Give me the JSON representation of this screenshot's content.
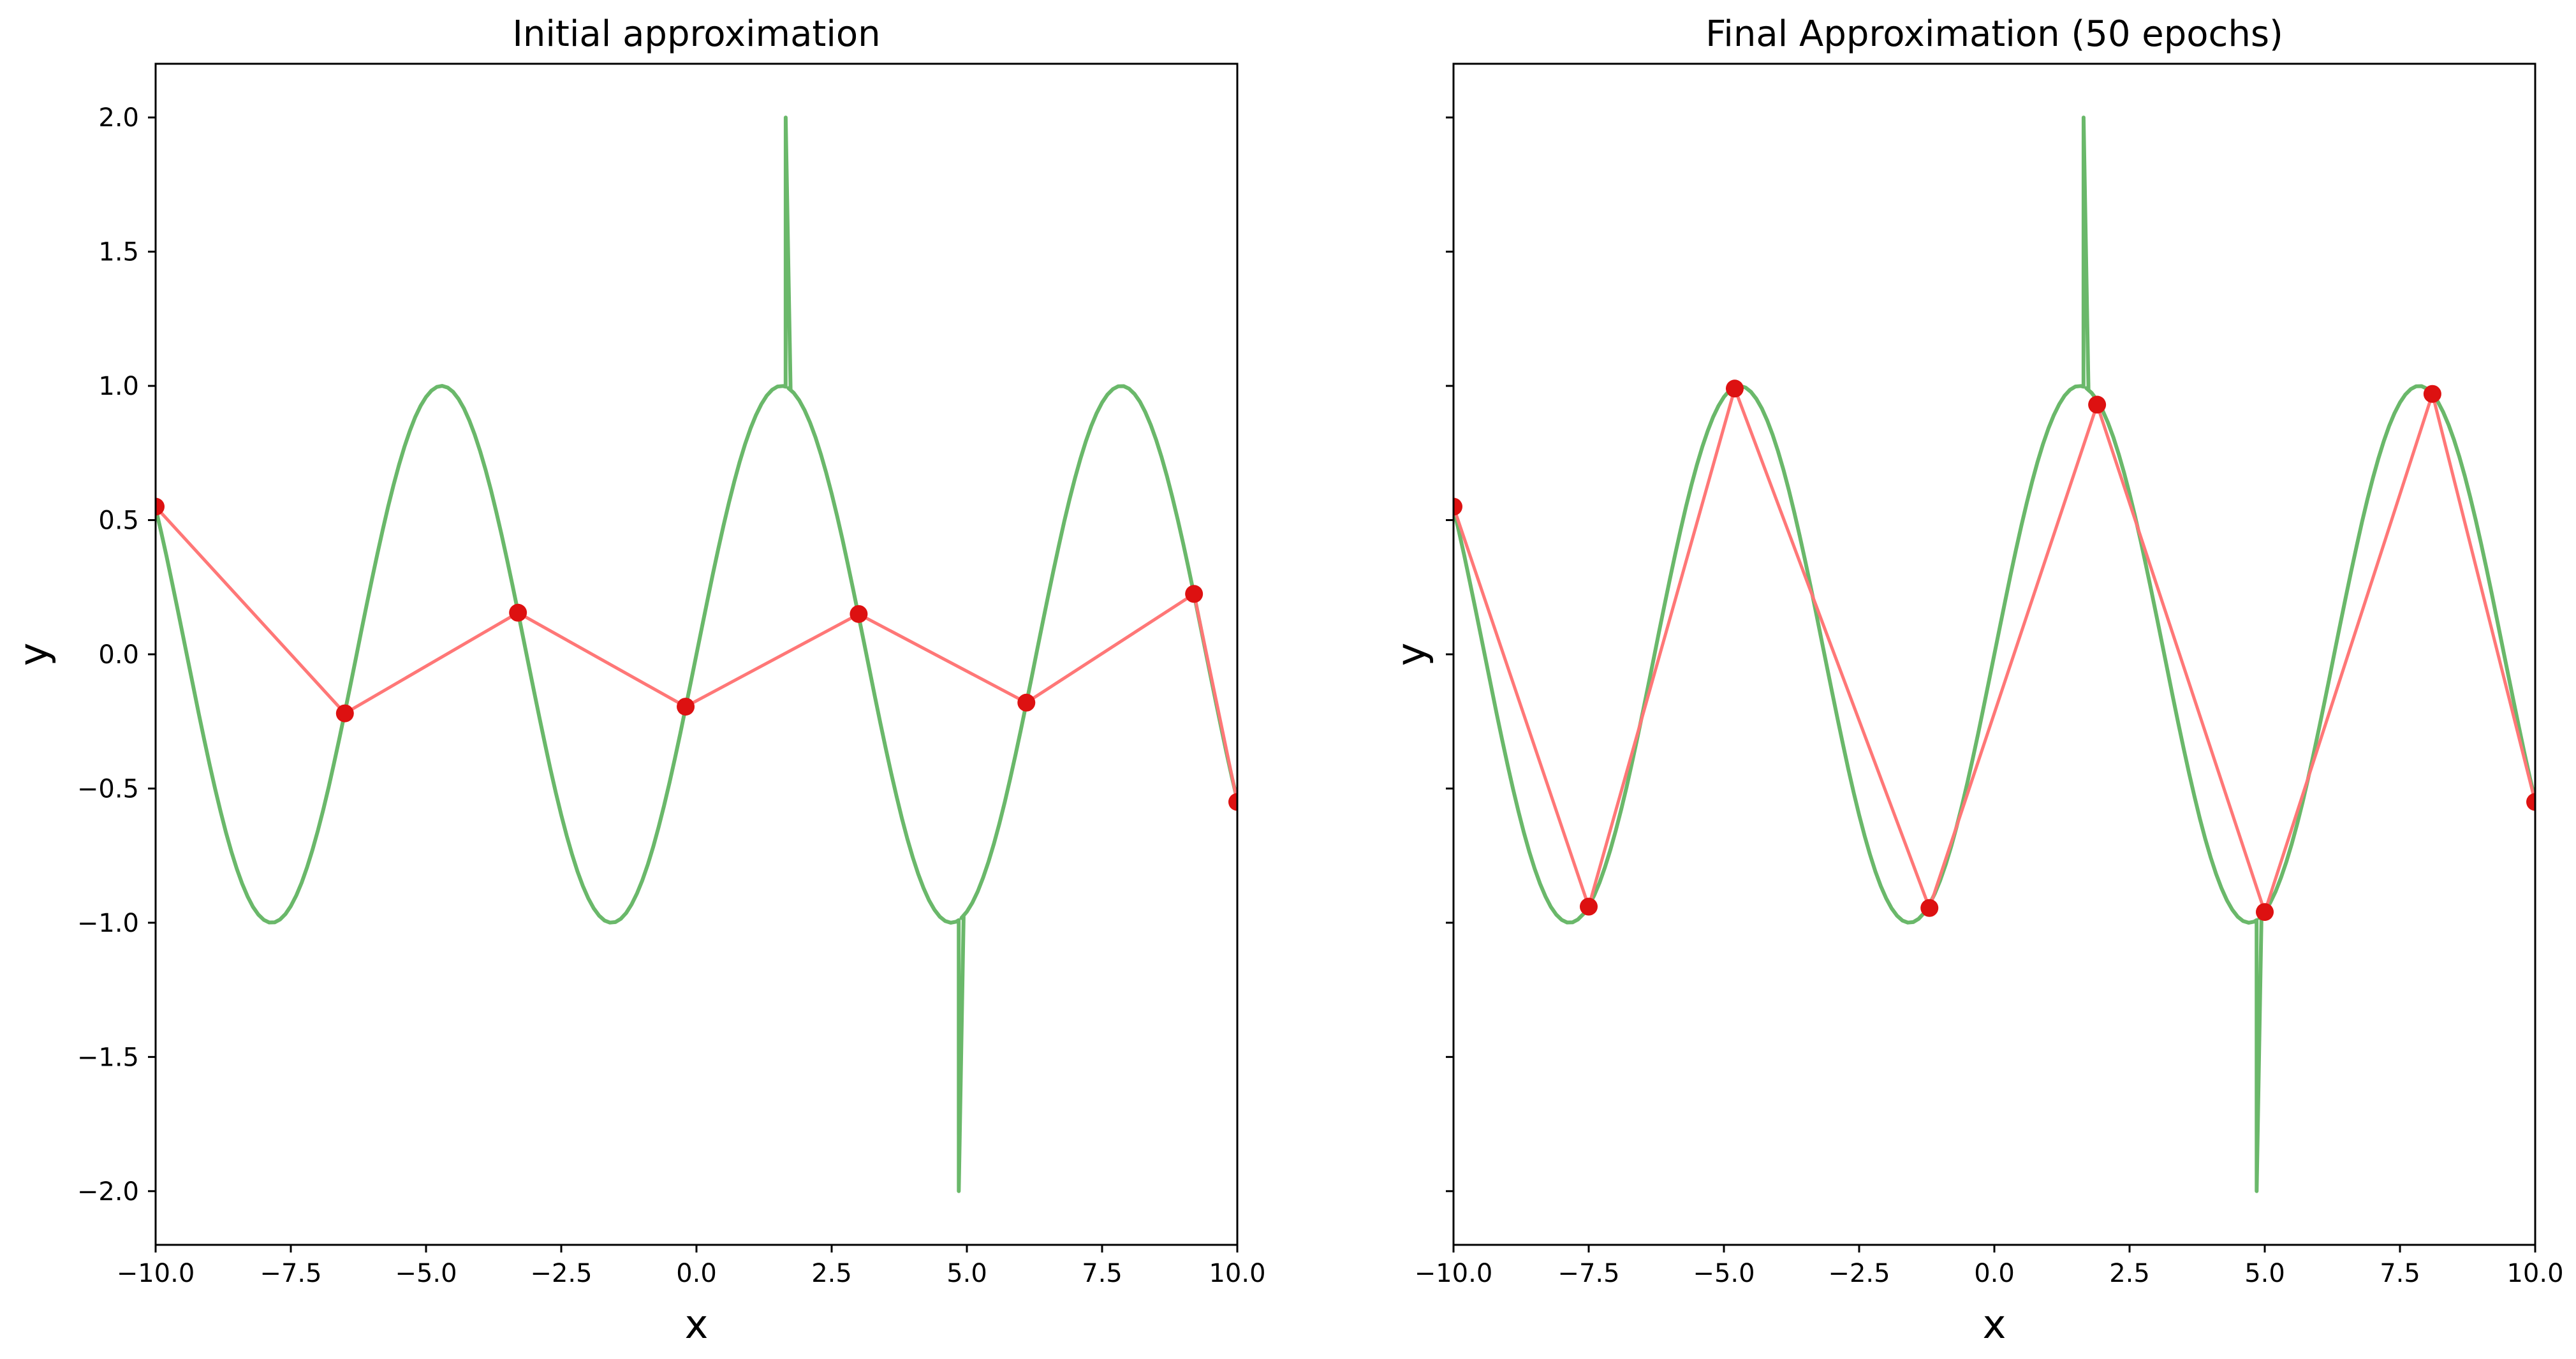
{
  "chart_data": [
    {
      "type": "line",
      "title": "Initial approximation",
      "xlabel": "x",
      "ylabel": "y",
      "xlim": [
        -10,
        10
      ],
      "ylim": [
        -2.2,
        2.2
      ],
      "xticks": [
        "−10.0",
        "−7.5",
        "−5.0",
        "−2.5",
        "0.0",
        "2.5",
        "5.0",
        "7.5",
        "10.0"
      ],
      "xtick_values": [
        -10,
        -7.5,
        -5,
        -2.5,
        0,
        2.5,
        5,
        7.5,
        10
      ],
      "yticks": [
        "−2.0",
        "−1.5",
        "−1.0",
        "−0.5",
        "0.0",
        "0.5",
        "1.0",
        "1.5",
        "2.0"
      ],
      "ytick_values": [
        -2,
        -1.5,
        -1,
        -0.5,
        0,
        0.5,
        1,
        1.5,
        2
      ],
      "show_yticklabels": true,
      "grid": false,
      "series": [
        {
          "kind": "target",
          "color": "#6ab86a",
          "function": "sin(x)",
          "x_range": [
            -10,
            10
          ],
          "spikes": [
            {
              "x": 1.65,
              "y": 2.0
            },
            {
              "x": 4.85,
              "y": -2.0
            }
          ]
        },
        {
          "kind": "approximation",
          "color": "#ff7777",
          "marker_color": "#dd1111",
          "points": [
            {
              "x": -10.0,
              "y": 0.55
            },
            {
              "x": -6.5,
              "y": -0.22
            },
            {
              "x": -3.3,
              "y": 0.155
            },
            {
              "x": -0.2,
              "y": -0.195
            },
            {
              "x": 3.0,
              "y": 0.15
            },
            {
              "x": 6.1,
              "y": -0.18
            },
            {
              "x": 9.2,
              "y": 0.225
            },
            {
              "x": 10.0,
              "y": -0.55
            }
          ]
        }
      ]
    },
    {
      "type": "line",
      "title": "Final Approximation (50 epochs)",
      "xlabel": "x",
      "ylabel": "y",
      "xlim": [
        -10,
        10
      ],
      "ylim": [
        -2.2,
        2.2
      ],
      "xticks": [
        "−10.0",
        "−7.5",
        "−5.0",
        "−2.5",
        "0.0",
        "2.5",
        "5.0",
        "7.5",
        "10.0"
      ],
      "xtick_values": [
        -10,
        -7.5,
        -5,
        -2.5,
        0,
        2.5,
        5,
        7.5,
        10
      ],
      "yticks": [],
      "ytick_values": [
        -2,
        -1.5,
        -1,
        -0.5,
        0,
        0.5,
        1,
        1.5,
        2
      ],
      "show_yticklabels": false,
      "grid": false,
      "series": [
        {
          "kind": "target",
          "color": "#6ab86a",
          "function": "sin(x)",
          "x_range": [
            -10,
            10
          ],
          "spikes": [
            {
              "x": 1.65,
              "y": 2.0
            },
            {
              "x": 4.85,
              "y": -2.0
            }
          ]
        },
        {
          "kind": "approximation",
          "color": "#ff7777",
          "marker_color": "#dd1111",
          "points": [
            {
              "x": -10.0,
              "y": 0.55
            },
            {
              "x": -7.5,
              "y": -0.94
            },
            {
              "x": -4.8,
              "y": 0.99
            },
            {
              "x": -1.2,
              "y": -0.945
            },
            {
              "x": 1.9,
              "y": 0.93
            },
            {
              "x": 5.0,
              "y": -0.96
            },
            {
              "x": 8.1,
              "y": 0.97
            },
            {
              "x": 10.0,
              "y": -0.55
            }
          ]
        }
      ]
    }
  ]
}
